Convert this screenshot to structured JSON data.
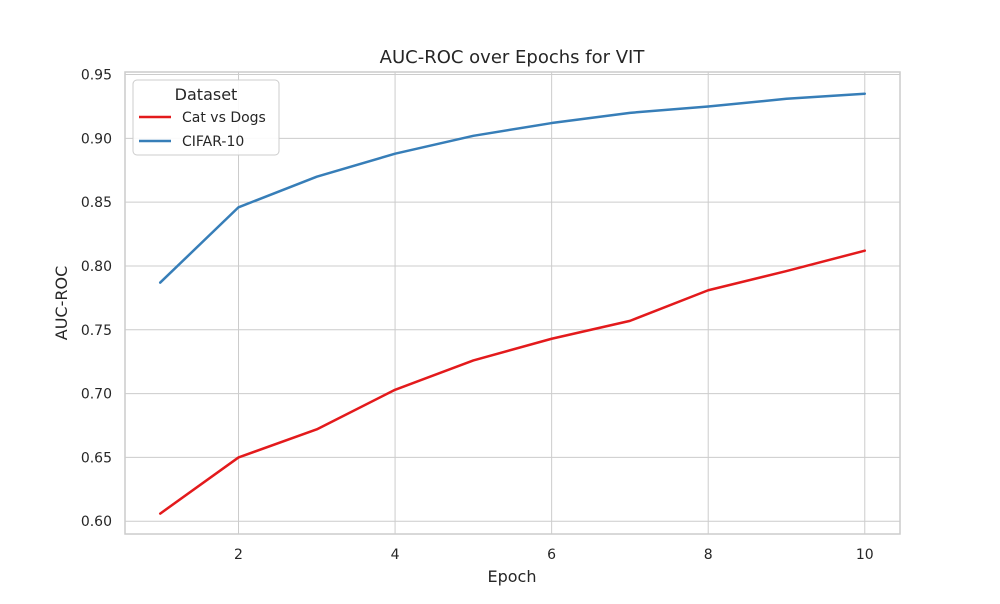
{
  "chart_data": {
    "type": "line",
    "title": "AUC-ROC over Epochs for VIT",
    "xlabel": "Epoch",
    "ylabel": "AUC-ROC",
    "x": [
      1,
      2,
      3,
      4,
      5,
      6,
      7,
      8,
      9,
      10
    ],
    "xlim": [
      0.55,
      10.45
    ],
    "ylim": [
      0.59,
      0.952
    ],
    "x_ticks": [
      2,
      4,
      6,
      8,
      10
    ],
    "x_tick_labels": [
      "2",
      "4",
      "6",
      "8",
      "10"
    ],
    "y_ticks": [
      0.6,
      0.65,
      0.7,
      0.75,
      0.8,
      0.85,
      0.9,
      0.95
    ],
    "y_tick_labels": [
      "0.60",
      "0.65",
      "0.70",
      "0.75",
      "0.80",
      "0.85",
      "0.90",
      "0.95"
    ],
    "grid": true,
    "legend": {
      "title": "Dataset",
      "placement": "top-left"
    },
    "series": [
      {
        "name": "Cat vs Dogs",
        "color": "#e31a1c",
        "values": [
          0.606,
          0.65,
          0.672,
          0.703,
          0.726,
          0.743,
          0.757,
          0.781,
          0.796,
          0.812
        ]
      },
      {
        "name": "CIFAR-10",
        "color": "#377eb8",
        "values": [
          0.787,
          0.846,
          0.87,
          0.888,
          0.902,
          0.912,
          0.92,
          0.925,
          0.931,
          0.935
        ]
      }
    ]
  }
}
